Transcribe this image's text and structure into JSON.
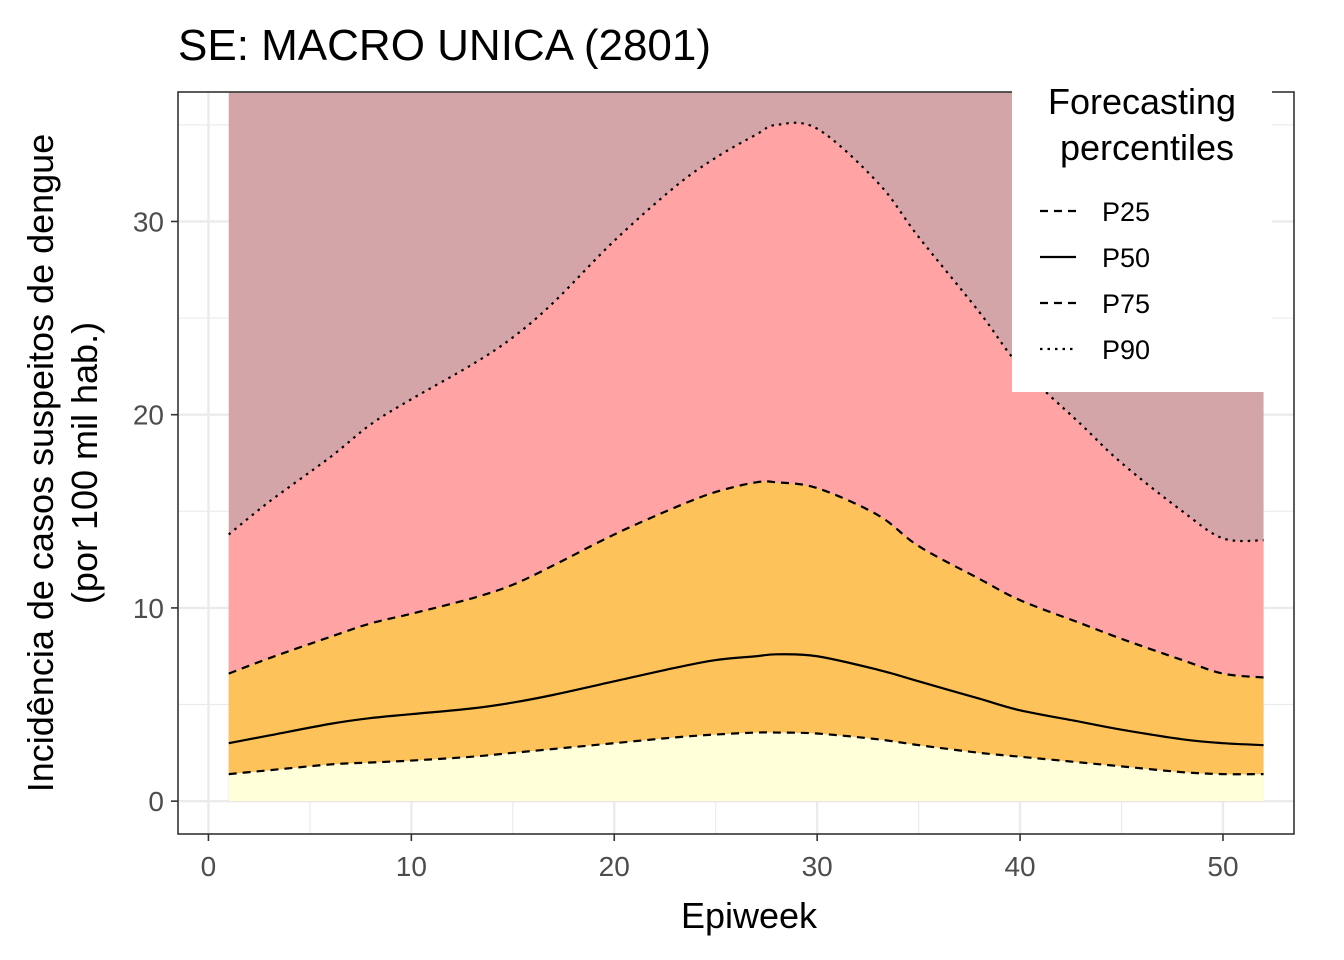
{
  "chart_data": {
    "type": "area",
    "title": "SE: MACRO UNICA (2801)",
    "xlabel": "Epiweek",
    "ylabel_line1": "Incidência de casos suspeitos de dengue",
    "ylabel_line2": "(por 100 mil hab.)",
    "xlim": [
      -1.5,
      53.5
    ],
    "ylim": [
      -1.7,
      36.7
    ],
    "x_ticks": [
      0,
      10,
      20,
      30,
      40,
      50
    ],
    "y_ticks": [
      0,
      10,
      20,
      30
    ],
    "grid": true,
    "background_fill": {
      "ymax": 36.7,
      "color": "#d4a5a8"
    },
    "bands": [
      {
        "from": "zero",
        "to": "P25",
        "color": "#ffffd9"
      },
      {
        "from": "P25",
        "to": "P75",
        "color": "#fdc35a"
      },
      {
        "from": "P75",
        "to": "P90",
        "color": "#ffa3a5"
      }
    ],
    "legend": {
      "title_line1": "Forecasting",
      "title_line2": "percentiles",
      "placement": "top-right"
    },
    "x": [
      1,
      3,
      6,
      8,
      10,
      13,
      15,
      17,
      20,
      23,
      25,
      27,
      28,
      30,
      33,
      35,
      38,
      40,
      43,
      45,
      48,
      50,
      52
    ],
    "series": [
      {
        "name": "P25",
        "dash": "dashed",
        "values": [
          1.4,
          1.6,
          1.9,
          2.0,
          2.1,
          2.3,
          2.5,
          2.7,
          3.0,
          3.3,
          3.45,
          3.55,
          3.55,
          3.5,
          3.2,
          2.9,
          2.5,
          2.3,
          2.0,
          1.8,
          1.5,
          1.4,
          1.4
        ]
      },
      {
        "name": "P50",
        "dash": "solid",
        "values": [
          3.0,
          3.4,
          4.0,
          4.3,
          4.5,
          4.8,
          5.1,
          5.5,
          6.2,
          6.9,
          7.3,
          7.5,
          7.6,
          7.5,
          6.8,
          6.2,
          5.3,
          4.7,
          4.1,
          3.7,
          3.2,
          3.0,
          2.9
        ]
      },
      {
        "name": "P75",
        "dash": "dashed",
        "values": [
          6.6,
          7.4,
          8.5,
          9.2,
          9.7,
          10.5,
          11.2,
          12.2,
          13.8,
          15.2,
          16.0,
          16.5,
          16.5,
          16.2,
          14.8,
          13.2,
          11.5,
          10.4,
          9.2,
          8.4,
          7.3,
          6.6,
          6.4
        ]
      },
      {
        "name": "P90",
        "dash": "dotted",
        "values": [
          13.8,
          15.5,
          17.8,
          19.5,
          20.8,
          22.6,
          24.0,
          25.8,
          29.0,
          31.8,
          33.3,
          34.5,
          35.0,
          34.8,
          32.0,
          29.2,
          25.3,
          22.5,
          19.5,
          17.5,
          15.0,
          13.6,
          13.5
        ]
      }
    ]
  }
}
